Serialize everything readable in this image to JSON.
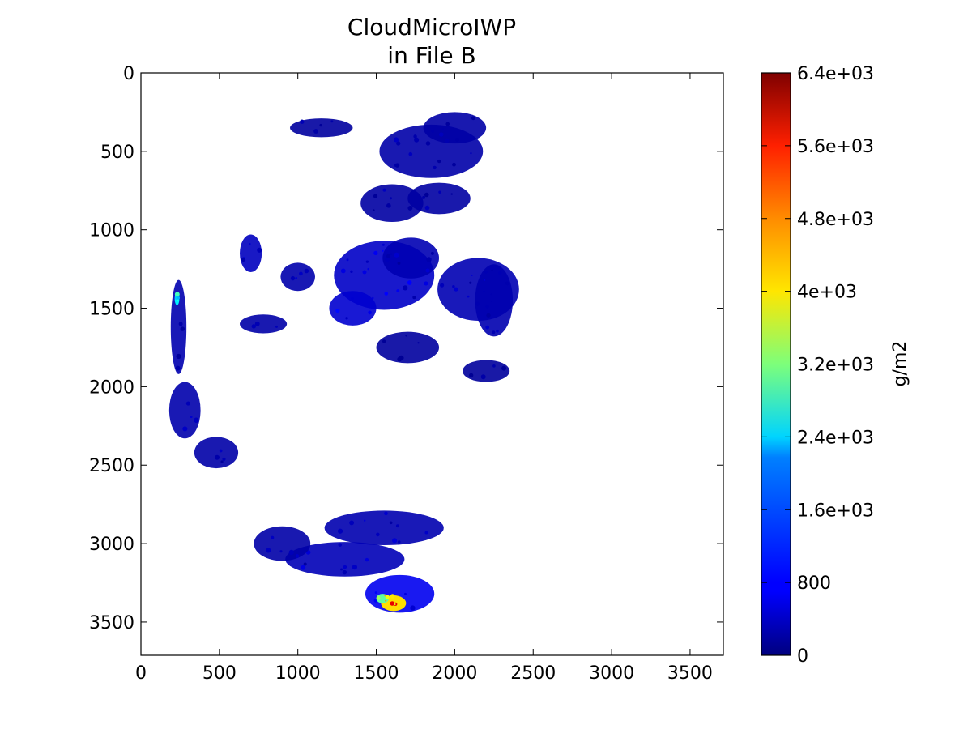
{
  "chart_data": {
    "type": "heatmap",
    "title_line1": "CloudMicroIWP",
    "title_line2": "in File B",
    "xlim": [
      0,
      3712
    ],
    "ylim": [
      3712,
      0
    ],
    "y_inverted": true,
    "x_ticks": [
      {
        "value": 0,
        "label": "0"
      },
      {
        "value": 500,
        "label": "500"
      },
      {
        "value": 1000,
        "label": "1000"
      },
      {
        "value": 1500,
        "label": "1500"
      },
      {
        "value": 2000,
        "label": "2000"
      },
      {
        "value": 2500,
        "label": "2500"
      },
      {
        "value": 3000,
        "label": "3000"
      },
      {
        "value": 3500,
        "label": "3500"
      }
    ],
    "y_ticks": [
      {
        "value": 0,
        "label": "0"
      },
      {
        "value": 500,
        "label": "500"
      },
      {
        "value": 1000,
        "label": "1000"
      },
      {
        "value": 1500,
        "label": "1500"
      },
      {
        "value": 2000,
        "label": "2000"
      },
      {
        "value": 2500,
        "label": "2500"
      },
      {
        "value": 3000,
        "label": "3000"
      },
      {
        "value": 3500,
        "label": "3500"
      }
    ],
    "grid": false,
    "colorbar": {
      "label": "g/m2",
      "vmin": 0,
      "vmax": 6400,
      "colormap": "jet",
      "ticks": [
        {
          "value": 0,
          "label": "0"
        },
        {
          "value": 800,
          "label": "800"
        },
        {
          "value": 1600,
          "label": "1.6e+03"
        },
        {
          "value": 2400,
          "label": "2.4e+03"
        },
        {
          "value": 3200,
          "label": "3.2e+03"
        },
        {
          "value": 4000,
          "label": "4e+03"
        },
        {
          "value": 4800,
          "label": "4.8e+03"
        },
        {
          "value": 5600,
          "label": "5.6e+03"
        },
        {
          "value": 6400,
          "label": "6.4e+03"
        }
      ]
    },
    "cloud_regions": [
      {
        "x": 1550,
        "y": 1290,
        "rx": 320,
        "ry": 220,
        "value": 450
      },
      {
        "x": 1720,
        "y": 1180,
        "rx": 180,
        "ry": 130,
        "value": 320
      },
      {
        "x": 2150,
        "y": 1380,
        "rx": 260,
        "ry": 200,
        "value": 320
      },
      {
        "x": 2250,
        "y": 1450,
        "rx": 120,
        "ry": 230,
        "value": 300
      },
      {
        "x": 1350,
        "y": 1500,
        "rx": 150,
        "ry": 110,
        "value": 500
      },
      {
        "x": 1000,
        "y": 1300,
        "rx": 110,
        "ry": 90,
        "value": 280
      },
      {
        "x": 700,
        "y": 1150,
        "rx": 70,
        "ry": 120,
        "value": 400
      },
      {
        "x": 780,
        "y": 1600,
        "rx": 150,
        "ry": 60,
        "value": 250
      },
      {
        "x": 1850,
        "y": 500,
        "rx": 330,
        "ry": 170,
        "value": 260
      },
      {
        "x": 2000,
        "y": 350,
        "rx": 200,
        "ry": 100,
        "value": 240
      },
      {
        "x": 1600,
        "y": 830,
        "rx": 200,
        "ry": 120,
        "value": 220
      },
      {
        "x": 1900,
        "y": 800,
        "rx": 200,
        "ry": 100,
        "value": 220
      },
      {
        "x": 1150,
        "y": 350,
        "rx": 200,
        "ry": 60,
        "value": 200
      },
      {
        "x": 1700,
        "y": 1750,
        "rx": 200,
        "ry": 100,
        "value": 200
      },
      {
        "x": 2200,
        "y": 1900,
        "rx": 150,
        "ry": 70,
        "value": 180
      },
      {
        "x": 240,
        "y": 1620,
        "rx": 50,
        "ry": 300,
        "value": 300
      },
      {
        "x": 280,
        "y": 2150,
        "rx": 100,
        "ry": 180,
        "value": 280
      },
      {
        "x": 480,
        "y": 2420,
        "rx": 140,
        "ry": 100,
        "value": 250
      },
      {
        "x": 1550,
        "y": 2900,
        "rx": 380,
        "ry": 110,
        "value": 300
      },
      {
        "x": 1300,
        "y": 3100,
        "rx": 380,
        "ry": 110,
        "value": 350
      },
      {
        "x": 1650,
        "y": 3320,
        "rx": 220,
        "ry": 120,
        "value": 700
      },
      {
        "x": 900,
        "y": 3000,
        "rx": 180,
        "ry": 110,
        "value": 250
      },
      {
        "x": 1610,
        "y": 3380,
        "rx": 80,
        "ry": 50,
        "value": 4200
      },
      {
        "x": 1540,
        "y": 3350,
        "rx": 40,
        "ry": 30,
        "value": 3000
      },
      {
        "x": 230,
        "y": 1440,
        "rx": 15,
        "ry": 40,
        "value": 2300
      }
    ]
  }
}
